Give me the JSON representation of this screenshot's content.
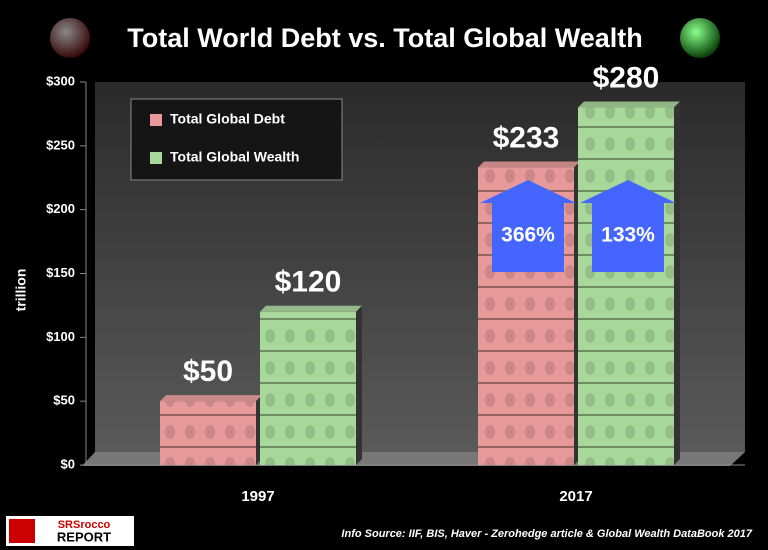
{
  "chart_data": {
    "type": "bar",
    "title": "Total World Debt vs. Total Global Wealth",
    "y_label": "trillion",
    "categories": [
      "1997",
      "2017"
    ],
    "series": [
      {
        "name": "Total Global Debt",
        "color": "#e89a9a",
        "values": [
          50,
          233
        ],
        "value_labels": [
          "$50",
          "$233"
        ]
      },
      {
        "name": "Total Global Wealth",
        "color": "#a8d89a",
        "values": [
          120,
          280
        ],
        "value_labels": [
          "$120",
          "$280"
        ]
      }
    ],
    "ylim": [
      0,
      300
    ],
    "yticks": [
      {
        "value": 0,
        "label": "$0"
      },
      {
        "value": 50,
        "label": "$50"
      },
      {
        "value": 100,
        "label": "$100"
      },
      {
        "value": 150,
        "label": "$150"
      },
      {
        "value": 200,
        "label": "$200"
      },
      {
        "value": 250,
        "label": "$250"
      },
      {
        "value": 300,
        "label": "$300"
      }
    ],
    "annotations": [
      "366%",
      "133%"
    ],
    "source": "Info Source: IIF, BIS, Haver - Zerohedge article & Global Wealth DataBook 2017",
    "logo": [
      "SRSrocco",
      "REPORT"
    ]
  }
}
